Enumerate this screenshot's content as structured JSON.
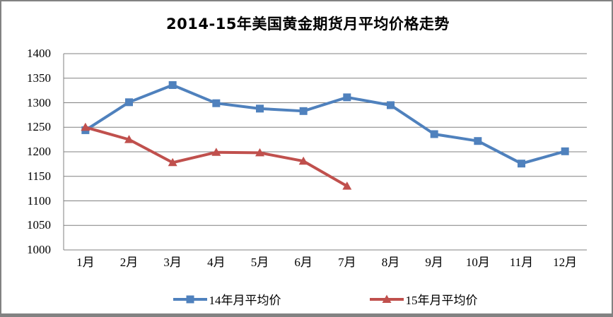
{
  "chart_data": {
    "type": "line",
    "title": "2014-15年美国黄金期货月平均价格走势",
    "categories": [
      "1月",
      "2月",
      "3月",
      "4月",
      "5月",
      "6月",
      "7月",
      "8月",
      "9月",
      "10月",
      "11月",
      "12月"
    ],
    "y_ticks": [
      1400,
      1350,
      1300,
      1250,
      1200,
      1150,
      1100,
      1050,
      1000
    ],
    "ylim": [
      1000,
      1400
    ],
    "y_step": 50,
    "grid": "horizontal-only",
    "legend_position": "bottom",
    "series": [
      {
        "name": "14年月平均价",
        "color": "#4F81BD",
        "marker": "square",
        "values": [
          1244,
          1301,
          1336,
          1299,
          1288,
          1283,
          1311,
          1295,
          1236,
          1222,
          1176,
          1201
        ]
      },
      {
        "name": "15年月平均价",
        "color": "#C0504D",
        "marker": "triangle",
        "values": [
          1250,
          1225,
          1178,
          1199,
          1198,
          1181,
          1130
        ]
      }
    ]
  },
  "colors": {
    "background": "#FFFFFF",
    "gridline": "#808080",
    "axis_line": "#808080",
    "frame_border": "#828282",
    "text": "#000000"
  }
}
